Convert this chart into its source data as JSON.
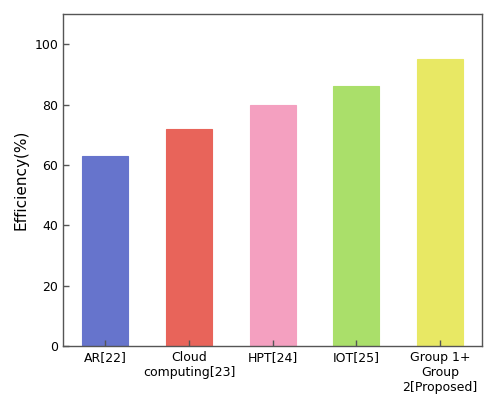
{
  "categories": [
    "AR[22]",
    "Cloud\ncomputing[23]",
    "HPT[24]",
    "IOT[25]",
    "Group 1+\nGroup\n2[Proposed]"
  ],
  "values": [
    63,
    72,
    80,
    86,
    95
  ],
  "bar_colors": [
    "#6674CC",
    "#E8645A",
    "#F4A0C0",
    "#AADF6A",
    "#E8E864"
  ],
  "bar_edgecolors": [
    "#6674CC",
    "#E8645A",
    "#F4A0C0",
    "#AADF6A",
    "#E8E864"
  ],
  "ylabel": "Efficiency(%)",
  "ylim": [
    0,
    110
  ],
  "yticks": [
    0,
    20,
    40,
    60,
    80,
    100
  ],
  "bar_width": 0.55,
  "figsize": [
    4.96,
    4.08
  ],
  "dpi": 100,
  "spine_color": "#555555",
  "tick_label_fontsize": 9,
  "ylabel_fontsize": 11
}
